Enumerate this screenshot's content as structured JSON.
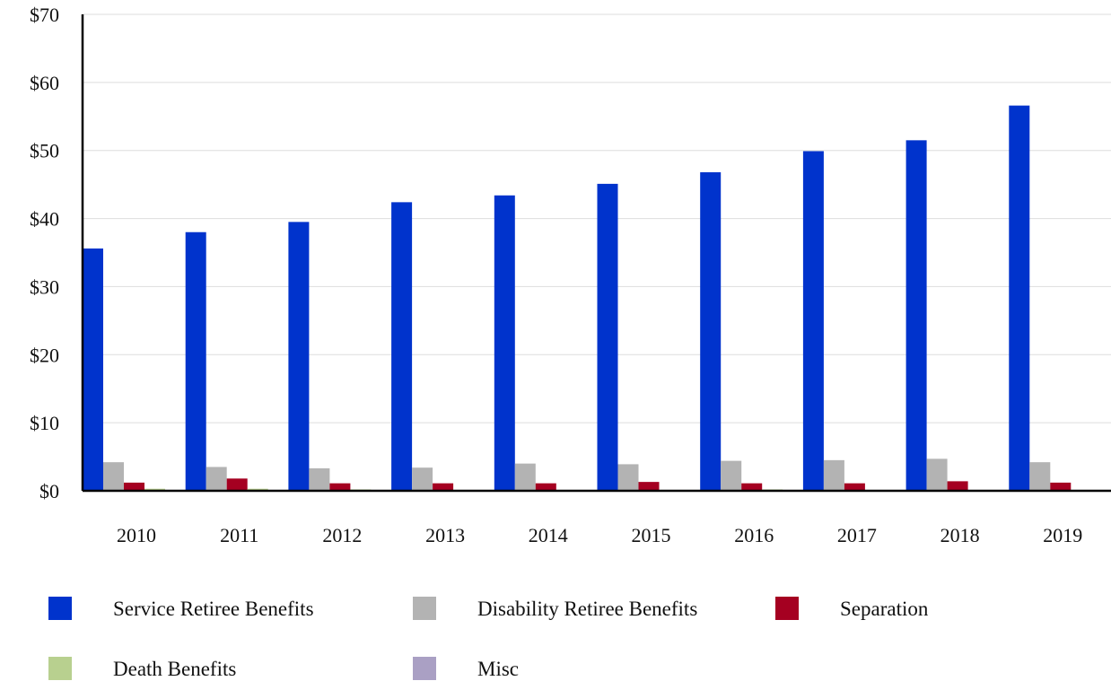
{
  "chart_data": {
    "type": "bar",
    "title": "",
    "xlabel": "",
    "ylabel": "",
    "categories": [
      "2010",
      "2011",
      "2012",
      "2013",
      "2014",
      "2015",
      "2016",
      "2017",
      "2018",
      "2019"
    ],
    "ylim": [
      0,
      70
    ],
    "yticks": [
      0,
      10,
      20,
      30,
      40,
      50,
      60,
      70
    ],
    "ytick_labels": [
      "$0",
      "$10",
      "$20",
      "$30",
      "$40",
      "$50",
      "$60",
      "$70"
    ],
    "grid": true,
    "legend_position": "bottom",
    "series": [
      {
        "name": "Service Retiree Benefits",
        "color": "#0033cc",
        "values": [
          35.6,
          38.0,
          39.5,
          42.4,
          43.4,
          45.1,
          46.8,
          49.9,
          51.5,
          56.6
        ]
      },
      {
        "name": "Disability Retiree Benefits",
        "color": "#b3b3b3",
        "values": [
          4.2,
          3.5,
          3.3,
          3.4,
          4.0,
          3.9,
          4.4,
          4.5,
          4.7,
          4.2
        ]
      },
      {
        "name": "Separation",
        "color": "#a50021",
        "values": [
          1.2,
          1.8,
          1.1,
          1.1,
          1.1,
          1.3,
          1.1,
          1.1,
          1.4,
          1.2
        ]
      },
      {
        "name": "Death Benefits",
        "color": "#b8d08f",
        "values": [
          0.3,
          0.3,
          0.2,
          0.1,
          0.1,
          0.1,
          0.2,
          0.1,
          0.1,
          0.1
        ]
      },
      {
        "name": "Misc",
        "color": "#aaa0c4",
        "values": [
          0,
          0,
          0,
          0,
          0,
          0,
          0,
          0,
          0,
          0
        ]
      }
    ]
  }
}
